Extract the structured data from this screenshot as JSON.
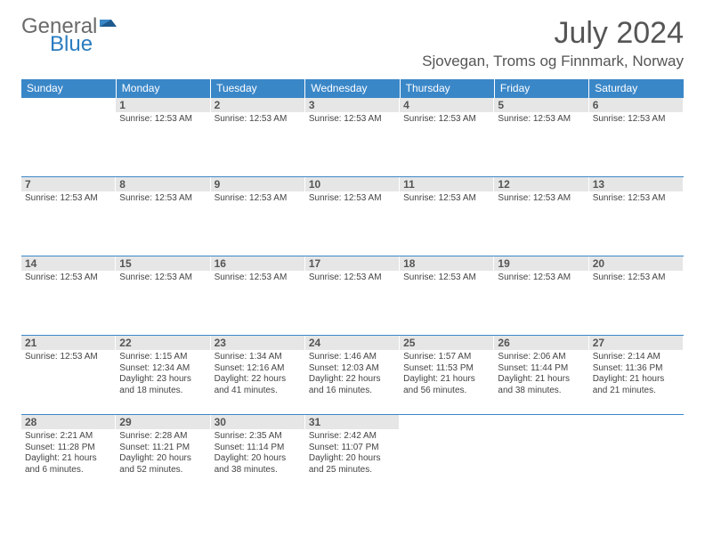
{
  "logo": {
    "word1": "General",
    "word2": "Blue"
  },
  "title": "July 2024",
  "location": "Sjovegan, Troms og Finnmark, Norway",
  "colors": {
    "header_bg": "#3a87c8",
    "header_text": "#ffffff",
    "daynum_bg": "#e6e6e6",
    "border": "#3a87c8",
    "logo_gray": "#6a6a6a",
    "logo_blue": "#2b7cc0"
  },
  "day_headers": [
    "Sunday",
    "Monday",
    "Tuesday",
    "Wednesday",
    "Thursday",
    "Friday",
    "Saturday"
  ],
  "weeks": [
    [
      {
        "num": "",
        "lines": []
      },
      {
        "num": "1",
        "lines": [
          "Sunrise: 12:53 AM"
        ]
      },
      {
        "num": "2",
        "lines": [
          "Sunrise: 12:53 AM"
        ]
      },
      {
        "num": "3",
        "lines": [
          "Sunrise: 12:53 AM"
        ]
      },
      {
        "num": "4",
        "lines": [
          "Sunrise: 12:53 AM"
        ]
      },
      {
        "num": "5",
        "lines": [
          "Sunrise: 12:53 AM"
        ]
      },
      {
        "num": "6",
        "lines": [
          "Sunrise: 12:53 AM"
        ]
      }
    ],
    [
      {
        "num": "7",
        "lines": [
          "Sunrise: 12:53 AM"
        ]
      },
      {
        "num": "8",
        "lines": [
          "Sunrise: 12:53 AM"
        ]
      },
      {
        "num": "9",
        "lines": [
          "Sunrise: 12:53 AM"
        ]
      },
      {
        "num": "10",
        "lines": [
          "Sunrise: 12:53 AM"
        ]
      },
      {
        "num": "11",
        "lines": [
          "Sunrise: 12:53 AM"
        ]
      },
      {
        "num": "12",
        "lines": [
          "Sunrise: 12:53 AM"
        ]
      },
      {
        "num": "13",
        "lines": [
          "Sunrise: 12:53 AM"
        ]
      }
    ],
    [
      {
        "num": "14",
        "lines": [
          "Sunrise: 12:53 AM"
        ]
      },
      {
        "num": "15",
        "lines": [
          "Sunrise: 12:53 AM"
        ]
      },
      {
        "num": "16",
        "lines": [
          "Sunrise: 12:53 AM"
        ]
      },
      {
        "num": "17",
        "lines": [
          "Sunrise: 12:53 AM"
        ]
      },
      {
        "num": "18",
        "lines": [
          "Sunrise: 12:53 AM"
        ]
      },
      {
        "num": "19",
        "lines": [
          "Sunrise: 12:53 AM"
        ]
      },
      {
        "num": "20",
        "lines": [
          "Sunrise: 12:53 AM"
        ]
      }
    ],
    [
      {
        "num": "21",
        "lines": [
          "Sunrise: 12:53 AM"
        ]
      },
      {
        "num": "22",
        "lines": [
          "Sunrise: 1:15 AM",
          "Sunset: 12:34 AM",
          "Daylight: 23 hours and 18 minutes."
        ]
      },
      {
        "num": "23",
        "lines": [
          "Sunrise: 1:34 AM",
          "Sunset: 12:16 AM",
          "Daylight: 22 hours and 41 minutes."
        ]
      },
      {
        "num": "24",
        "lines": [
          "Sunrise: 1:46 AM",
          "Sunset: 12:03 AM",
          "Daylight: 22 hours and 16 minutes."
        ]
      },
      {
        "num": "25",
        "lines": [
          "Sunrise: 1:57 AM",
          "Sunset: 11:53 PM",
          "Daylight: 21 hours and 56 minutes."
        ]
      },
      {
        "num": "26",
        "lines": [
          "Sunrise: 2:06 AM",
          "Sunset: 11:44 PM",
          "Daylight: 21 hours and 38 minutes."
        ]
      },
      {
        "num": "27",
        "lines": [
          "Sunrise: 2:14 AM",
          "Sunset: 11:36 PM",
          "Daylight: 21 hours and 21 minutes."
        ]
      }
    ],
    [
      {
        "num": "28",
        "lines": [
          "Sunrise: 2:21 AM",
          "Sunset: 11:28 PM",
          "Daylight: 21 hours and 6 minutes."
        ]
      },
      {
        "num": "29",
        "lines": [
          "Sunrise: 2:28 AM",
          "Sunset: 11:21 PM",
          "Daylight: 20 hours and 52 minutes."
        ]
      },
      {
        "num": "30",
        "lines": [
          "Sunrise: 2:35 AM",
          "Sunset: 11:14 PM",
          "Daylight: 20 hours and 38 minutes."
        ]
      },
      {
        "num": "31",
        "lines": [
          "Sunrise: 2:42 AM",
          "Sunset: 11:07 PM",
          "Daylight: 20 hours and 25 minutes."
        ]
      },
      {
        "num": "",
        "lines": []
      },
      {
        "num": "",
        "lines": []
      },
      {
        "num": "",
        "lines": []
      }
    ]
  ]
}
